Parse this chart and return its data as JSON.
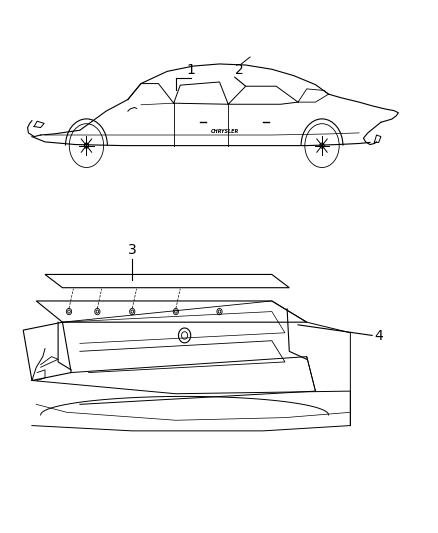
{
  "background_color": "#ffffff",
  "fig_width": 4.39,
  "fig_height": 5.33,
  "dpi": 100,
  "line_color": "#000000",
  "text_color": "#000000",
  "font_size": 10
}
